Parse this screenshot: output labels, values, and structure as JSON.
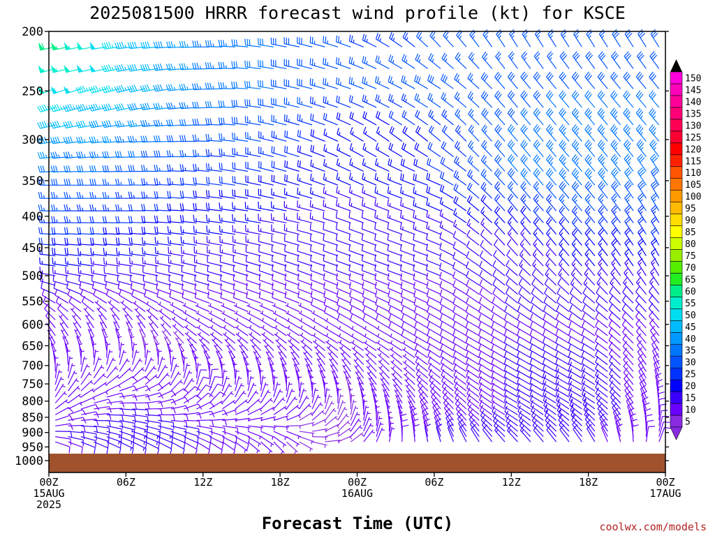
{
  "chart_data": {
    "type": "wind-barb-profile",
    "title": "2025081500 HRRR forecast wind profile (kt) for KSCE",
    "xlabel": "Forecast Time (UTC)",
    "credit": "coolwx.com/models",
    "y_ticks": [
      200,
      250,
      300,
      350,
      400,
      450,
      500,
      550,
      600,
      650,
      700,
      750,
      800,
      850,
      900,
      950,
      1000
    ],
    "x_ticks": [
      {
        "hour": 0,
        "lines": [
          "00Z",
          "15AUG",
          "2025"
        ]
      },
      {
        "hour": 6,
        "lines": [
          "06Z"
        ]
      },
      {
        "hour": 12,
        "lines": [
          "12Z"
        ]
      },
      {
        "hour": 18,
        "lines": [
          "18Z"
        ]
      },
      {
        "hour": 24,
        "lines": [
          "00Z",
          "16AUG"
        ]
      },
      {
        "hour": 30,
        "lines": [
          "06Z"
        ]
      },
      {
        "hour": 36,
        "lines": [
          "12Z"
        ]
      },
      {
        "hour": 42,
        "lines": [
          "18Z"
        ]
      },
      {
        "hour": 48,
        "lines": [
          "00Z",
          "17AUG"
        ]
      }
    ],
    "x_range_hours": [
      0,
      48
    ],
    "y_range_hpa": [
      1000,
      200
    ],
    "y_scale": "log-pressure",
    "colorbar": {
      "levels": [
        "5",
        "10",
        "15",
        "20",
        "25",
        "30",
        "35",
        "40",
        "45",
        "50",
        "55",
        "60",
        "65",
        "70",
        "75",
        "80",
        "85",
        "90",
        "95",
        "100",
        "105",
        "110",
        "115",
        "120",
        "125",
        "130",
        "135",
        "140",
        "145",
        "150"
      ],
      "colors": [
        "#8a2be2",
        "#6a00ff",
        "#3a00ff",
        "#0000ff",
        "#0033ff",
        "#0055ff",
        "#0077ff",
        "#0099ff",
        "#00bbff",
        "#00ddee",
        "#00eecc",
        "#00ee88",
        "#22ee22",
        "#55ee00",
        "#99ee00",
        "#ccff00",
        "#ffff00",
        "#ffdd00",
        "#ffbb00",
        "#ff9900",
        "#ff7700",
        "#ff5500",
        "#ff2200",
        "#ff0000",
        "#ff0033",
        "#ff0055",
        "#ff0077",
        "#ff0099",
        "#ff00bb",
        "#ff00dd"
      ]
    },
    "ground_color": "#a0522d",
    "wind_field": [
      {
        "hour": 0,
        "profile": [
          [
            200,
            260,
            65
          ],
          [
            250,
            250,
            50
          ],
          [
            300,
            260,
            40
          ],
          [
            350,
            270,
            30
          ],
          [
            400,
            270,
            25
          ],
          [
            450,
            275,
            20
          ],
          [
            500,
            280,
            15
          ],
          [
            550,
            300,
            10
          ],
          [
            600,
            320,
            8
          ],
          [
            650,
            330,
            6
          ],
          [
            700,
            350,
            6
          ],
          [
            750,
            10,
            6
          ],
          [
            800,
            30,
            6
          ],
          [
            850,
            60,
            8
          ],
          [
            900,
            90,
            10
          ],
          [
            950,
            120,
            8
          ]
        ]
      },
      {
        "hour": 6,
        "profile": [
          [
            200,
            265,
            45
          ],
          [
            250,
            255,
            45
          ],
          [
            300,
            265,
            35
          ],
          [
            350,
            270,
            28
          ],
          [
            400,
            270,
            22
          ],
          [
            450,
            275,
            18
          ],
          [
            500,
            280,
            12
          ],
          [
            550,
            300,
            8
          ],
          [
            600,
            330,
            6
          ],
          [
            650,
            350,
            5
          ],
          [
            700,
            20,
            6
          ],
          [
            750,
            60,
            8
          ],
          [
            800,
            90,
            10
          ],
          [
            850,
            100,
            12
          ],
          [
            900,
            110,
            15
          ],
          [
            950,
            120,
            12
          ]
        ]
      },
      {
        "hour": 12,
        "profile": [
          [
            200,
            270,
            35
          ],
          [
            250,
            265,
            35
          ],
          [
            300,
            270,
            28
          ],
          [
            350,
            275,
            22
          ],
          [
            400,
            275,
            18
          ],
          [
            450,
            280,
            15
          ],
          [
            500,
            285,
            12
          ],
          [
            550,
            290,
            8
          ],
          [
            600,
            300,
            6
          ],
          [
            650,
            310,
            5
          ],
          [
            700,
            340,
            6
          ],
          [
            750,
            10,
            8
          ],
          [
            800,
            40,
            8
          ],
          [
            850,
            80,
            8
          ],
          [
            900,
            110,
            10
          ],
          [
            950,
            130,
            8
          ]
        ]
      },
      {
        "hour": 18,
        "profile": [
          [
            200,
            280,
            30
          ],
          [
            250,
            280,
            30
          ],
          [
            300,
            285,
            25
          ],
          [
            350,
            285,
            20
          ],
          [
            400,
            280,
            15
          ],
          [
            450,
            285,
            12
          ],
          [
            500,
            290,
            10
          ],
          [
            550,
            290,
            8
          ],
          [
            600,
            300,
            6
          ],
          [
            650,
            310,
            5
          ],
          [
            700,
            330,
            6
          ],
          [
            750,
            350,
            6
          ],
          [
            800,
            20,
            6
          ],
          [
            850,
            60,
            6
          ],
          [
            900,
            120,
            6
          ],
          [
            950,
            150,
            5
          ]
        ]
      },
      {
        "hour": 24,
        "profile": [
          [
            200,
            290,
            25
          ],
          [
            250,
            290,
            25
          ],
          [
            300,
            300,
            15
          ],
          [
            350,
            295,
            15
          ],
          [
            400,
            290,
            12
          ],
          [
            450,
            290,
            10
          ],
          [
            500,
            290,
            10
          ],
          [
            550,
            295,
            8
          ],
          [
            600,
            300,
            8
          ],
          [
            650,
            300,
            6
          ],
          [
            700,
            320,
            6
          ],
          [
            750,
            330,
            5
          ],
          [
            800,
            350,
            5
          ],
          [
            850,
            10,
            5
          ],
          [
            900,
            30,
            6
          ],
          [
            950,
            60,
            5
          ]
        ]
      },
      {
        "hour": 30,
        "profile": [
          [
            200,
            320,
            25
          ],
          [
            250,
            300,
            28
          ],
          [
            300,
            310,
            20
          ],
          [
            350,
            290,
            20
          ],
          [
            400,
            290,
            15
          ],
          [
            450,
            290,
            12
          ],
          [
            500,
            290,
            10
          ],
          [
            550,
            295,
            8
          ],
          [
            600,
            300,
            8
          ],
          [
            650,
            300,
            8
          ],
          [
            700,
            305,
            8
          ],
          [
            750,
            310,
            8
          ],
          [
            800,
            320,
            8
          ],
          [
            850,
            330,
            8
          ],
          [
            900,
            340,
            10
          ],
          [
            950,
            350,
            12
          ]
        ]
      },
      {
        "hour": 36,
        "profile": [
          [
            200,
            330,
            25
          ],
          [
            250,
            320,
            28
          ],
          [
            300,
            320,
            30
          ],
          [
            350,
            320,
            30
          ],
          [
            400,
            320,
            20
          ],
          [
            450,
            320,
            12
          ],
          [
            500,
            310,
            12
          ],
          [
            550,
            310,
            10
          ],
          [
            600,
            300,
            10
          ],
          [
            650,
            300,
            10
          ],
          [
            700,
            300,
            10
          ],
          [
            750,
            300,
            10
          ],
          [
            800,
            300,
            10
          ],
          [
            850,
            300,
            10
          ],
          [
            900,
            310,
            12
          ],
          [
            950,
            320,
            14
          ]
        ]
      },
      {
        "hour": 42,
        "profile": [
          [
            200,
            330,
            25
          ],
          [
            250,
            320,
            30
          ],
          [
            300,
            320,
            35
          ],
          [
            350,
            320,
            35
          ],
          [
            400,
            320,
            25
          ],
          [
            450,
            320,
            18
          ],
          [
            500,
            320,
            15
          ],
          [
            550,
            310,
            12
          ],
          [
            600,
            305,
            10
          ],
          [
            650,
            300,
            10
          ],
          [
            700,
            300,
            12
          ],
          [
            750,
            300,
            15
          ],
          [
            800,
            300,
            15
          ],
          [
            850,
            310,
            15
          ],
          [
            900,
            320,
            12
          ],
          [
            950,
            330,
            10
          ]
        ]
      },
      {
        "hour": 48,
        "profile": [
          [
            200,
            330,
            30
          ],
          [
            250,
            320,
            30
          ],
          [
            300,
            320,
            35
          ],
          [
            350,
            330,
            30
          ],
          [
            400,
            330,
            25
          ],
          [
            450,
            330,
            20
          ],
          [
            500,
            330,
            15
          ],
          [
            550,
            320,
            12
          ],
          [
            600,
            320,
            10
          ],
          [
            650,
            330,
            8
          ],
          [
            700,
            340,
            8
          ],
          [
            750,
            350,
            8
          ],
          [
            800,
            0,
            8
          ],
          [
            850,
            10,
            8
          ],
          [
            900,
            20,
            8
          ],
          [
            950,
            30,
            8
          ]
        ]
      }
    ]
  }
}
